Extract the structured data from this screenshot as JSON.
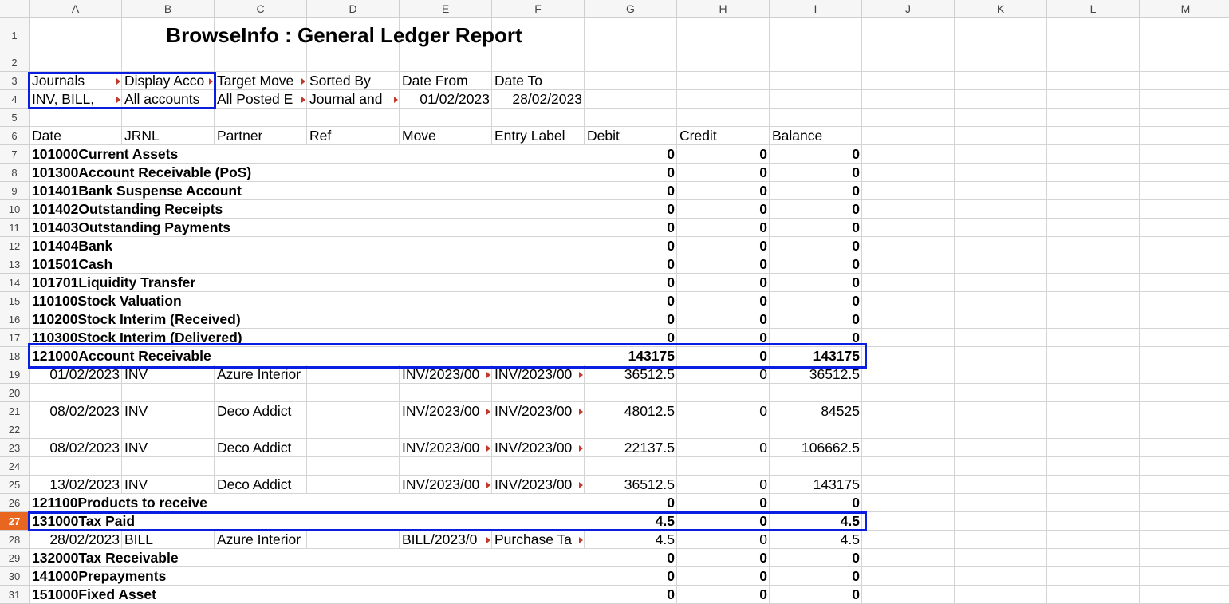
{
  "columns": [
    "A",
    "B",
    "C",
    "D",
    "E",
    "F",
    "G",
    "H",
    "I",
    "J",
    "K",
    "L",
    "M"
  ],
  "title": "BrowseInfo : General Ledger Report",
  "filters": {
    "headers": [
      "Journals",
      "Display Acco",
      "Target Move",
      "Sorted By",
      "Date From",
      "Date To"
    ],
    "values": [
      "INV, BILL,",
      "All accounts",
      "All Posted E",
      "Journal and",
      "01/02/2023",
      "28/02/2023"
    ]
  },
  "table_headers": [
    "Date",
    "JRNL",
    "Partner",
    "Ref",
    "Move",
    "Entry Label",
    "Debit",
    "Credit",
    "Balance"
  ],
  "rows": [
    {
      "row": "7",
      "label": "101000Current Assets",
      "debit": "0",
      "credit": "0",
      "balance": "0"
    },
    {
      "row": "8",
      "label": "101300Account Receivable (PoS)",
      "debit": "0",
      "credit": "0",
      "balance": "0"
    },
    {
      "row": "9",
      "label": "101401Bank Suspense Account",
      "debit": "0",
      "credit": "0",
      "balance": "0"
    },
    {
      "row": "10",
      "label": "101402Outstanding Receipts",
      "debit": "0",
      "credit": "0",
      "balance": "0"
    },
    {
      "row": "11",
      "label": "101403Outstanding Payments",
      "debit": "0",
      "credit": "0",
      "balance": "0"
    },
    {
      "row": "12",
      "label": "101404Bank",
      "debit": "0",
      "credit": "0",
      "balance": "0"
    },
    {
      "row": "13",
      "label": "101501Cash",
      "debit": "0",
      "credit": "0",
      "balance": "0"
    },
    {
      "row": "14",
      "label": "101701Liquidity Transfer",
      "debit": "0",
      "credit": "0",
      "balance": "0"
    },
    {
      "row": "15",
      "label": "110100Stock Valuation",
      "debit": "0",
      "credit": "0",
      "balance": "0"
    },
    {
      "row": "16",
      "label": "110200Stock Interim (Received)",
      "debit": "0",
      "credit": "0",
      "balance": "0"
    },
    {
      "row": "17",
      "label": "110300Stock Interim (Delivered)",
      "debit": "0",
      "credit": "0",
      "balance": "0"
    },
    {
      "row": "18",
      "label": "121000Account Receivable",
      "debit": "143175",
      "credit": "0",
      "balance": "143175"
    },
    {
      "row": "19",
      "detail": true,
      "date": "01/02/2023",
      "jrnl": "INV",
      "partner": "Azure Interior",
      "move": "INV/2023/00",
      "entry": "INV/2023/00",
      "debit": "36512.5",
      "credit": "0",
      "balance": "36512.5"
    },
    {
      "row": "20",
      "blank": true
    },
    {
      "row": "21",
      "detail": true,
      "date": "08/02/2023",
      "jrnl": "INV",
      "partner": "Deco Addict",
      "move": "INV/2023/00",
      "entry": "INV/2023/00",
      "debit": "48012.5",
      "credit": "0",
      "balance": "84525"
    },
    {
      "row": "22",
      "blank": true
    },
    {
      "row": "23",
      "detail": true,
      "date": "08/02/2023",
      "jrnl": "INV",
      "partner": "Deco Addict",
      "move": "INV/2023/00",
      "entry": "INV/2023/00",
      "debit": "22137.5",
      "credit": "0",
      "balance": "106662.5"
    },
    {
      "row": "24",
      "blank": true
    },
    {
      "row": "25",
      "detail": true,
      "date": "13/02/2023",
      "jrnl": "INV",
      "partner": "Deco Addict",
      "move": "INV/2023/00",
      "entry": "INV/2023/00",
      "debit": "36512.5",
      "credit": "0",
      "balance": "143175"
    },
    {
      "row": "26",
      "label": "121100Products to receive",
      "debit": "0",
      "credit": "0",
      "balance": "0"
    },
    {
      "row": "27",
      "label": "131000Tax Paid",
      "debit": "4.5",
      "credit": "0",
      "balance": "4.5"
    },
    {
      "row": "28",
      "detail": true,
      "date": "28/02/2023",
      "jrnl": "BILL",
      "partner": "Azure Interior",
      "move": "BILL/2023/0",
      "entry": "Purchase Ta",
      "debit": "4.5",
      "credit": "0",
      "balance": "4.5"
    },
    {
      "row": "29",
      "label": "132000Tax Receivable",
      "debit": "0",
      "credit": "0",
      "balance": "0"
    },
    {
      "row": "30",
      "label": "141000Prepayments",
      "debit": "0",
      "credit": "0",
      "balance": "0"
    },
    {
      "row": "31",
      "label": "151000Fixed Asset",
      "debit": "0",
      "credit": "0",
      "balance": "0"
    }
  ],
  "active_row": "27",
  "colors": {
    "highlight": "#0a1ee0",
    "active_row": "#e8661f"
  }
}
